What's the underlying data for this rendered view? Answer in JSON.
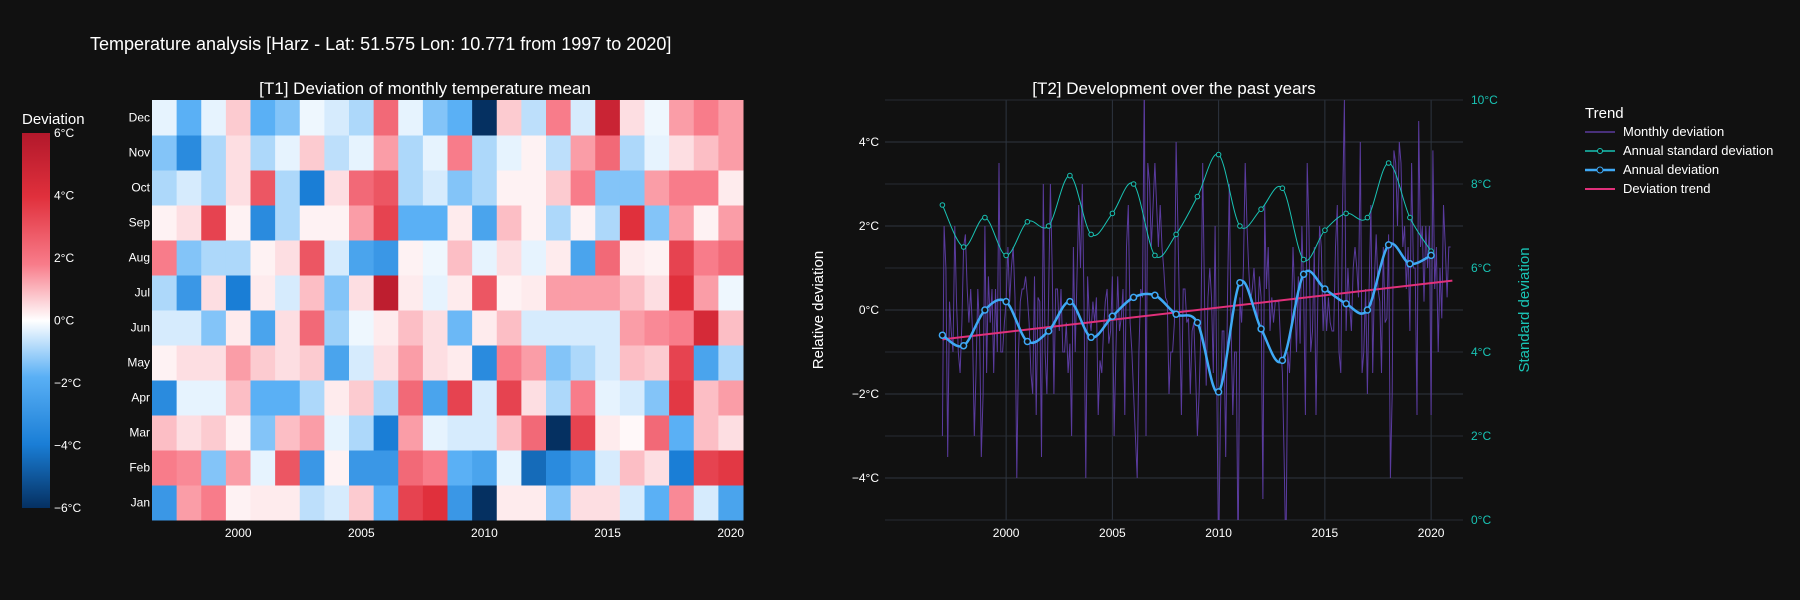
{
  "page": {
    "title": "Temperature analysis [Harz - Lat: 51.575 Lon: 10.771 from 1997 to 2020]"
  },
  "chart_data": [
    {
      "type": "heatmap",
      "title": "[T1] Deviation of monthly temperature mean",
      "x": [
        1997,
        1998,
        1999,
        2000,
        2001,
        2002,
        2003,
        2004,
        2005,
        2006,
        2007,
        2008,
        2009,
        2010,
        2011,
        2012,
        2013,
        2014,
        2015,
        2016,
        2017,
        2018,
        2019,
        2020
      ],
      "x_ticks": [
        "2000",
        "2005",
        "2010",
        "2015",
        "2020"
      ],
      "months": [
        "Jan",
        "Feb",
        "Mar",
        "Apr",
        "May",
        "Jun",
        "Jul",
        "Aug",
        "Sep",
        "Oct",
        "Nov",
        "Dec"
      ],
      "z": [
        [
          -3.0,
          1.5,
          2.0,
          0.2,
          0.3,
          0.3,
          -0.8,
          -0.5,
          0.8,
          -2.0,
          3.5,
          4.0,
          -3.0,
          -6.0,
          0.3,
          0.3,
          -1.5,
          0.5,
          0.5,
          -0.5,
          -2.0,
          1.8,
          -0.5,
          -2.5
        ],
        [
          2.0,
          1.8,
          -1.5,
          1.5,
          -0.3,
          3.0,
          -3.0,
          0.2,
          -3.0,
          -3.0,
          2.5,
          2.0,
          -2.0,
          -2.5,
          -0.3,
          -4.5,
          -3.5,
          -2.5,
          -0.5,
          1.0,
          0.5,
          -4.0,
          3.5,
          3.8
        ],
        [
          1.0,
          0.5,
          0.8,
          0.2,
          -1.5,
          1.0,
          1.5,
          -0.3,
          -1.0,
          -4.0,
          1.5,
          -0.3,
          -0.5,
          -0.5,
          1.0,
          2.5,
          -6.0,
          3.5,
          0.3,
          0.1,
          2.5,
          -2.0,
          1.0,
          0.5
        ],
        [
          -3.5,
          -0.3,
          -0.3,
          1.0,
          -2.0,
          -2.0,
          -1.0,
          0.3,
          0.8,
          -1.0,
          2.5,
          -2.5,
          3.5,
          -0.5,
          3.5,
          0.5,
          -1.0,
          2.0,
          -0.3,
          -0.5,
          -1.5,
          3.8,
          1.0,
          1.5
        ],
        [
          0.2,
          0.5,
          0.5,
          1.5,
          0.8,
          0.5,
          0.8,
          -2.5,
          -0.5,
          0.5,
          1.5,
          0.5,
          0.3,
          -3.5,
          2.0,
          1.5,
          -1.5,
          -1.0,
          -0.5,
          1.0,
          0.8,
          3.5,
          -2.5,
          -1.0
        ],
        [
          -0.5,
          -0.5,
          -1.5,
          0.3,
          -2.5,
          0.5,
          2.5,
          -1.2,
          -0.2,
          0.3,
          1.0,
          0.5,
          -1.8,
          0.3,
          1.0,
          -0.5,
          -0.5,
          -0.5,
          -0.5,
          1.5,
          1.8,
          2.0,
          4.5,
          1.0
        ],
        [
          -1.0,
          -3.0,
          0.5,
          -4.0,
          0.3,
          -0.5,
          1.0,
          -1.5,
          0.5,
          5.5,
          0.3,
          -0.3,
          0.3,
          3.0,
          0.2,
          0.3,
          1.5,
          1.5,
          1.5,
          1.0,
          0.5,
          4.0,
          1.5,
          -0.2
        ],
        [
          2.0,
          -1.5,
          -1.0,
          -1.0,
          0.2,
          0.5,
          3.0,
          -0.5,
          -2.5,
          -3.0,
          0.2,
          -0.2,
          1.0,
          -0.3,
          0.5,
          -0.3,
          0.3,
          -2.5,
          2.5,
          0.3,
          0.2,
          3.5,
          2.0,
          2.5
        ],
        [
          0.2,
          0.5,
          3.5,
          0.2,
          -3.5,
          -1.0,
          0.2,
          0.2,
          1.5,
          3.5,
          -2.0,
          -2.0,
          0.3,
          -2.5,
          1.0,
          0.2,
          -1.0,
          0.2,
          -1.0,
          4.0,
          -1.5,
          1.5,
          0.2,
          1.5
        ],
        [
          -1.0,
          -0.5,
          -1.0,
          0.5,
          3.0,
          -1.0,
          -4.0,
          0.5,
          2.5,
          3.0,
          -1.0,
          -0.5,
          -1.5,
          -1.0,
          0.2,
          0.2,
          0.8,
          2.0,
          -1.5,
          -1.5,
          1.5,
          2.0,
          2.0,
          0.3
        ],
        [
          -1.5,
          -3.5,
          -1.0,
          0.5,
          -1.0,
          -0.3,
          0.8,
          -0.8,
          -0.3,
          1.5,
          -1.0,
          -0.3,
          2.0,
          -1.0,
          -0.3,
          0.2,
          -0.8,
          1.5,
          2.5,
          -1.0,
          -0.3,
          0.5,
          1.0,
          1.5
        ],
        [
          -0.3,
          -2.0,
          -0.3,
          0.8,
          -2.0,
          -1.5,
          -0.2,
          -0.5,
          -1.0,
          2.5,
          -0.3,
          -1.5,
          -2.0,
          -6.0,
          0.8,
          -0.8,
          2.0,
          -0.5,
          5.0,
          0.5,
          -0.2,
          1.5,
          2.0,
          1.5
        ]
      ],
      "colorbar": {
        "title": "Deviation",
        "range": [
          -6,
          6
        ],
        "ticks": [
          "6°C",
          "4°C",
          "2°C",
          "0°C",
          "−2°C",
          "−4°C",
          "−6°C"
        ],
        "colors": [
          "#053061",
          "#1a7ed6",
          "#5ab0f5",
          "#ffffff",
          "#f87c8a",
          "#e0303c",
          "#b2182b"
        ]
      }
    },
    {
      "type": "line",
      "title": "[T2] Development over the past years",
      "ylabel": "Relative deviation",
      "y2label": "Standard deviation",
      "xlim": [
        1994.3,
        2021.5
      ],
      "ylim": [
        -5,
        5
      ],
      "y2lim": [
        0,
        10
      ],
      "x_ticks": [
        "2000",
        "2005",
        "2010",
        "2015",
        "2020"
      ],
      "y_ticks": [
        "4°C",
        "2°C",
        "0°C",
        "−2°C",
        "−4°C"
      ],
      "y2_ticks": [
        "10°C",
        "8°C",
        "6°C",
        "4°C",
        "2°C",
        "0°C"
      ],
      "legend_title": "Trend",
      "legend_position": "top-right",
      "series": [
        {
          "name": "Monthly deviation",
          "color": "#5a3b9e"
        },
        {
          "name": "Annual standard deviation",
          "color": "#19c3b4",
          "axis": "y2",
          "x": [
            1997,
            1998,
            1999,
            2000,
            2001,
            2002,
            2003,
            2004,
            2005,
            2006,
            2007,
            2008,
            2009,
            2010,
            2011,
            2012,
            2013,
            2014,
            2015,
            2016,
            2017,
            2018,
            2019,
            2020
          ],
          "values": [
            7.5,
            6.5,
            7.2,
            6.3,
            7.1,
            7.0,
            8.2,
            6.8,
            7.3,
            8.0,
            6.3,
            6.8,
            7.7,
            8.7,
            7.0,
            7.4,
            7.9,
            6.2,
            6.9,
            7.3,
            7.2,
            8.5,
            7.2,
            6.4
          ]
        },
        {
          "name": "Annual deviation",
          "color": "#3fa9f5",
          "x": [
            1997,
            1998,
            1999,
            2000,
            2001,
            2002,
            2003,
            2004,
            2005,
            2006,
            2007,
            2008,
            2009,
            2010,
            2011,
            2012,
            2013,
            2014,
            2015,
            2016,
            2017,
            2018,
            2019,
            2020
          ],
          "values": [
            -0.6,
            -0.85,
            0.0,
            0.2,
            -0.75,
            -0.5,
            0.2,
            -0.65,
            -0.15,
            0.3,
            0.35,
            -0.1,
            -0.3,
            -1.95,
            0.65,
            -0.45,
            -1.2,
            0.85,
            0.5,
            0.15,
            0.0,
            1.55,
            1.1,
            1.3
          ]
        },
        {
          "name": "Deviation trend",
          "color": "#e0307a",
          "x": [
            1997,
            2021
          ],
          "values": [
            -0.7,
            0.7
          ]
        }
      ]
    }
  ]
}
